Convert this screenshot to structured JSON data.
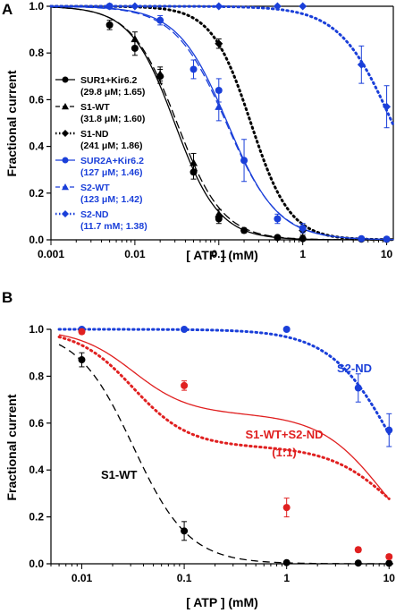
{
  "chart_data": [
    {
      "panel": "A",
      "type": "line",
      "title": "",
      "xlabel": "[ ATP ]  (mM)",
      "ylabel": "Fractional current",
      "xscale": "log",
      "xlim": [
        0.001,
        12
      ],
      "ylim": [
        0,
        1.0
      ],
      "xticks": [
        0.001,
        0.01,
        0.1,
        1,
        10
      ],
      "xtick_labels": [
        "0.001",
        "0.01",
        "0.1",
        "1",
        "10"
      ],
      "yticks": [
        0,
        0.2,
        0.4,
        0.6,
        0.8,
        1.0
      ],
      "ytick_labels": [
        "0.0",
        "0.2",
        "0.4",
        "0.6",
        "0.8",
        "1.0"
      ],
      "legend_position": "left",
      "series": [
        {
          "name": "SUR1+Kir6.2",
          "params": "(29.8 μM; 1.65)",
          "ic50": 0.0298,
          "h": 1.65,
          "color": "#000000",
          "line": "solid",
          "marker": "circle",
          "x": [
            0.005,
            0.01,
            0.02,
            0.05,
            0.1,
            0.2,
            0.5,
            1,
            5,
            10
          ],
          "y": [
            0.92,
            0.82,
            0.7,
            0.29,
            0.09,
            0.04,
            0.01,
            0.005,
            0.003,
            0.002
          ],
          "err": [
            0.02,
            0.03,
            0.03,
            0.03,
            0.02,
            0.01,
            0,
            0,
            0,
            0
          ]
        },
        {
          "name": "S1-WT",
          "params": "(31.8 μM; 1.60)",
          "ic50": 0.0318,
          "h": 1.6,
          "color": "#000000",
          "line": "dashed",
          "marker": "triangle",
          "x": [
            0.01,
            0.02,
            0.05,
            0.1
          ],
          "y": [
            0.86,
            0.71,
            0.33,
            0.11
          ],
          "err": [
            0.03,
            0.03,
            0.04,
            0.02
          ]
        },
        {
          "name": "S1-ND",
          "params": "(241 μM; 1.86)",
          "ic50": 0.241,
          "h": 1.86,
          "color": "#000000",
          "line": "dotted",
          "marker": "diamond",
          "x": [
            0.1,
            1
          ],
          "y": [
            0.84,
            0.04
          ],
          "err": [
            0.02,
            0.02
          ]
        },
        {
          "name": "SUR2A+Kir6.2",
          "params": "(127 μM; 1.46)",
          "ic50": 0.127,
          "h": 1.46,
          "color": "#1a3fd9",
          "line": "solid",
          "marker": "circle",
          "x": [
            0.005,
            0.02,
            0.05,
            0.1,
            0.2,
            0.5,
            1,
            5,
            10
          ],
          "y": [
            1.0,
            0.94,
            0.73,
            0.64,
            0.34,
            0.09,
            0.05,
            0.005,
            0.003
          ],
          "err": [
            0,
            0.02,
            0.04,
            0.05,
            0.09,
            0.02,
            0.02,
            0,
            0
          ]
        },
        {
          "name": "S2-WT",
          "params": "(123 μM; 1.42)",
          "ic50": 0.123,
          "h": 1.42,
          "color": "#1a3fd9",
          "line": "dashed",
          "marker": "triangle",
          "x": [
            0.1
          ],
          "y": [
            0.57
          ],
          "err": [
            0.06
          ]
        },
        {
          "name": "S2-ND",
          "params": "(11.7 mM; 1.38)",
          "ic50": 11.7,
          "h": 1.38,
          "color": "#1a3fd9",
          "line": "dotted",
          "marker": "diamond",
          "x": [
            0.005,
            0.01,
            0.1,
            0.5,
            1,
            5,
            10
          ],
          "y": [
            1.0,
            1.0,
            1.0,
            1.0,
            1.0,
            0.75,
            0.57
          ],
          "err": [
            0,
            0,
            0,
            0,
            0,
            0.08,
            0.09
          ]
        }
      ]
    },
    {
      "panel": "B",
      "type": "line",
      "title": "",
      "xlabel": "[ ATP ]  (mM)",
      "ylabel": "Fractional current",
      "xscale": "log",
      "xlim": [
        0.005,
        11
      ],
      "ylim": [
        0,
        1.0
      ],
      "xticks": [
        0.01,
        0.1,
        1,
        10
      ],
      "xtick_labels": [
        "0.01",
        "0.1",
        "1",
        "10"
      ],
      "yticks": [
        0,
        0.2,
        0.4,
        0.6,
        0.8,
        1.0
      ],
      "ytick_labels": [
        "0.0",
        "0.2",
        "0.4",
        "0.6",
        "0.8",
        "1.0"
      ],
      "annotations": [
        {
          "text": "S2-ND",
          "color": "#1a3fd9"
        },
        {
          "text": "S1-WT+S2-ND",
          "color": "#e02020"
        },
        {
          "text": "(1:1)",
          "color": "#e02020"
        },
        {
          "text": "S1-WT",
          "color": "#000000"
        }
      ],
      "series": [
        {
          "name": "S1-WT",
          "ic50": 0.0318,
          "h": 1.6,
          "color": "#000000",
          "line": "dashed",
          "marker": "circle",
          "x": [
            0.01,
            0.1,
            1,
            5,
            10
          ],
          "y": [
            0.87,
            0.14,
            0.005,
            0.003,
            0.002
          ],
          "err": [
            0.03,
            0.04,
            0,
            0,
            0
          ]
        },
        {
          "name": "S2-ND",
          "ic50": 11.7,
          "h": 1.38,
          "color": "#1a3fd9",
          "line": "dotted",
          "marker": "circle",
          "x": [
            0.01,
            0.1,
            1,
            5,
            10
          ],
          "y": [
            1.0,
            1.0,
            1.0,
            0.75,
            0.57
          ],
          "err": [
            0,
            0,
            0,
            0.06,
            0.07
          ]
        },
        {
          "name": "S1-WT+S2-ND (1:1)",
          "color": "#e02020",
          "line": "dotted",
          "marker": "circle",
          "x": [
            0.01,
            0.1,
            1,
            5,
            10
          ],
          "y": [
            0.99,
            0.76,
            0.24,
            0.06,
            0.03
          ],
          "err": [
            0.01,
            0.02,
            0.04,
            0.01,
            0.01
          ]
        },
        {
          "name": "",
          "color": "#e02020",
          "line": "solid",
          "marker": "none",
          "x": [],
          "y": []
        }
      ]
    }
  ]
}
